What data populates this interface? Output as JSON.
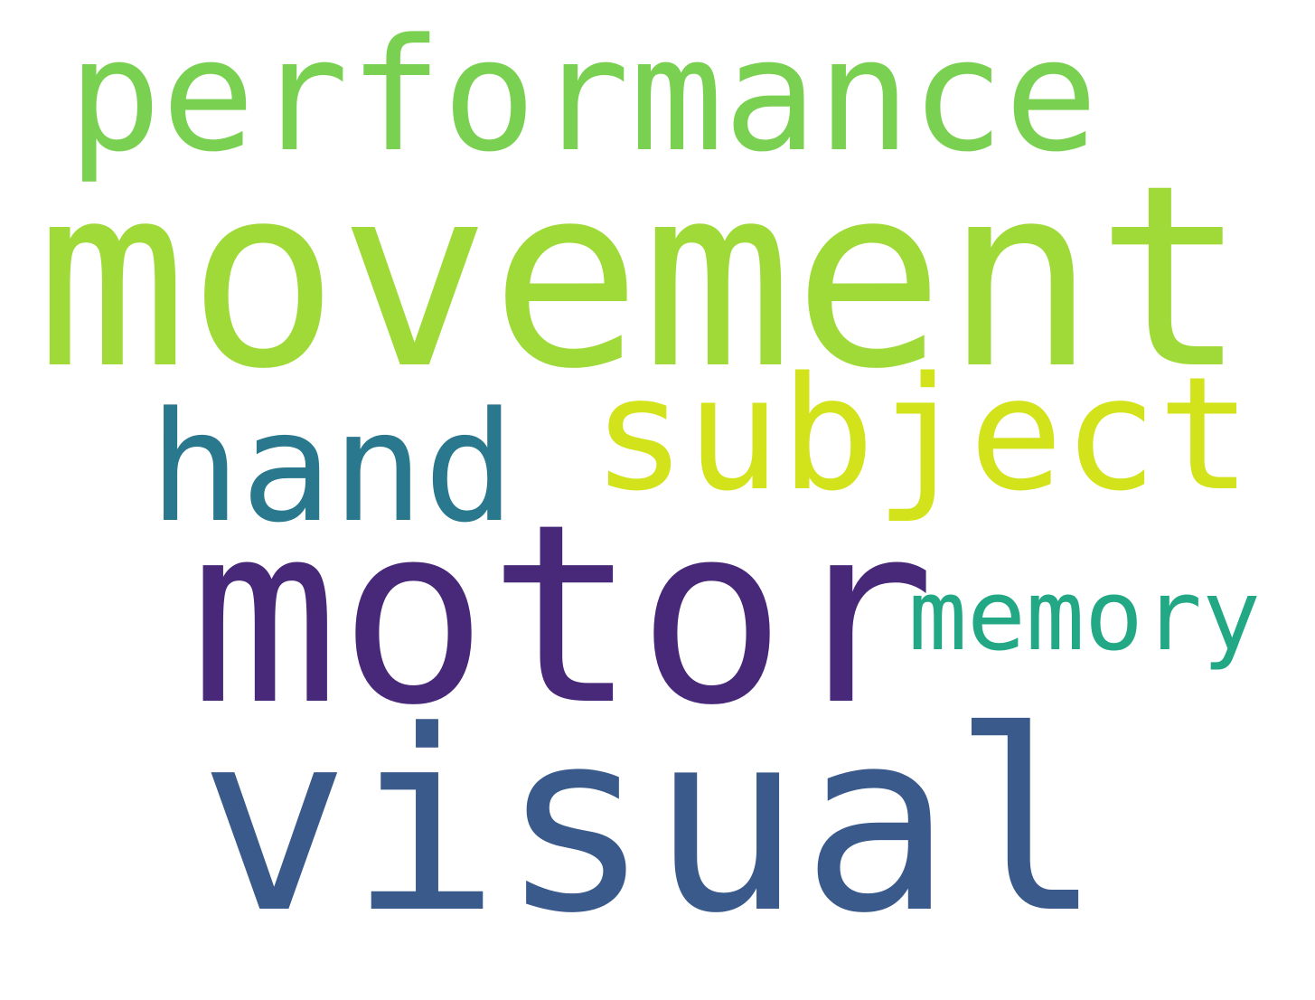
{
  "words": [
    {
      "text": "performance",
      "color": "#7ad151"
    },
    {
      "text": "movement",
      "color": "#a0da39"
    },
    {
      "text": "hand",
      "color": "#2a788e"
    },
    {
      "text": "subject",
      "color": "#d2e21b"
    },
    {
      "text": "motor",
      "color": "#482878"
    },
    {
      "text": "memory",
      "color": "#22a884"
    },
    {
      "text": "visual",
      "color": "#3a5a8c"
    }
  ]
}
